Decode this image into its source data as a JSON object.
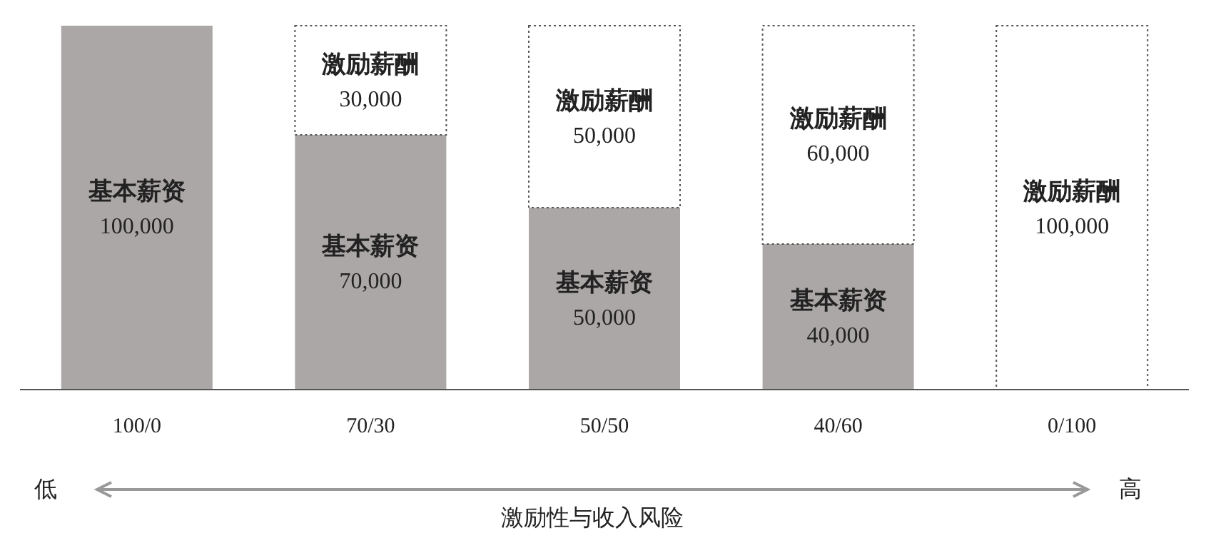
{
  "chart_data": {
    "type": "bar",
    "stacked": true,
    "categories": [
      "100/0",
      "70/30",
      "50/50",
      "40/60",
      "0/100"
    ],
    "series": [
      {
        "name": "基本薪资",
        "color": "#aba7a6",
        "values": [
          100000,
          70000,
          50000,
          40000,
          0
        ],
        "value_labels": [
          "100,000",
          "70,000",
          "50,000",
          "40,000",
          null
        ]
      },
      {
        "name": "激励薪酬",
        "color": "#ffffff",
        "line_style": "dotted",
        "values": [
          0,
          30000,
          50000,
          60000,
          100000
        ],
        "value_labels": [
          null,
          "30,000",
          "50,000",
          "60,000",
          "100,000"
        ]
      }
    ],
    "annotations": [
      "低",
      "高",
      "激励性与收入风险"
    ]
  }
}
